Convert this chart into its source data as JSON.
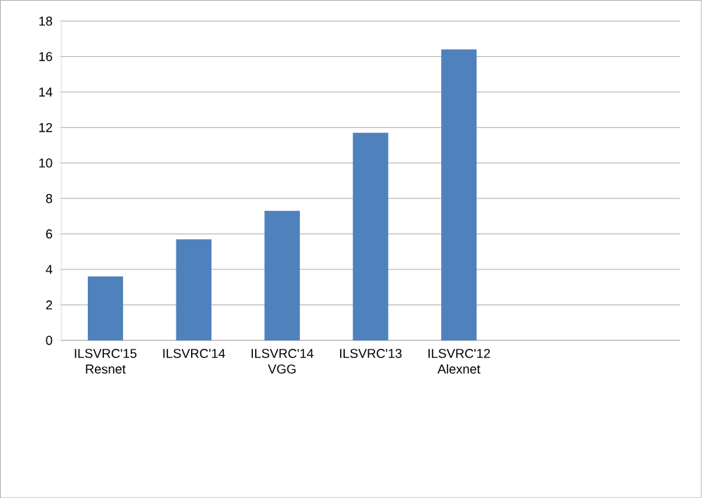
{
  "chart_data": {
    "type": "bar",
    "categories": [
      "ILSVRC'15 Resnet",
      "ILSVRC'14",
      "ILSVRC'14 VGG",
      "ILSVRC'13",
      "ILSVRC'12 Alexnet",
      null,
      null
    ],
    "values": [
      3.6,
      5.7,
      7.3,
      11.7,
      16.4,
      null,
      null
    ],
    "color": "#4f81bd",
    "ylim": [
      0,
      18
    ],
    "yticks": [
      0,
      2,
      4,
      6,
      8,
      10,
      12,
      14,
      16,
      18
    ],
    "grid": "y"
  }
}
